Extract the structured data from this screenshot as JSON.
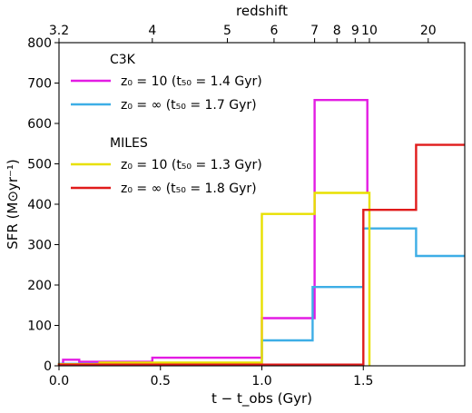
{
  "chart_data": {
    "type": "line",
    "xlabel": "t − t_obs (Gyr)",
    "ylabel": "SFR (M⊙yr⁻¹)",
    "top_xlabel": "redshift",
    "xlim": [
      0,
      2.0
    ],
    "ylim": [
      0,
      800
    ],
    "x_ticks": [
      0.0,
      0.5,
      1.0,
      1.5
    ],
    "x_tick_labels": [
      "0.0",
      "0.5",
      "1.0",
      "1.5"
    ],
    "y_ticks": [
      0,
      100,
      200,
      300,
      400,
      500,
      600,
      700,
      800
    ],
    "y_tick_labels": [
      "0",
      "100",
      "200",
      "300",
      "400",
      "500",
      "600",
      "700",
      "800"
    ],
    "top_ticks": [
      {
        "label": "3.2",
        "x": 0.0
      },
      {
        "label": "4",
        "x": 0.46
      },
      {
        "label": "5",
        "x": 0.83
      },
      {
        "label": "6",
        "x": 1.06
      },
      {
        "label": "7",
        "x": 1.26
      },
      {
        "label": "8",
        "x": 1.37
      },
      {
        "label": "9",
        "x": 1.46
      },
      {
        "label": "10",
        "x": 1.53
      },
      {
        "label": "20",
        "x": 1.82
      }
    ],
    "legend_groups": [
      {
        "title": "C3K",
        "entries": [
          0,
          1
        ]
      },
      {
        "title": "MILES",
        "entries": [
          2,
          3
        ]
      }
    ],
    "series": [
      {
        "name": "z₀ = 10 (t₅₀ = 1.4 Gyr)",
        "color": "#e31ce3",
        "x": [
          0.02,
          0.02,
          0.1,
          0.1,
          0.46,
          0.46,
          1.0,
          1.0,
          1.26,
          1.26,
          1.52,
          1.52
        ],
        "y": [
          0,
          15,
          15,
          10,
          10,
          20,
          20,
          118,
          118,
          658,
          658,
          430
        ]
      },
      {
        "name": "z₀ = ∞ (t₅₀ = 1.7 Gyr)",
        "color": "#3daee6",
        "x": [
          0.0,
          0.0,
          1.0,
          1.0,
          1.25,
          1.25,
          1.5,
          1.5,
          1.76,
          1.76,
          2.0
        ],
        "y": [
          0,
          5,
          5,
          63,
          63,
          195,
          195,
          340,
          340,
          272,
          272
        ]
      },
      {
        "name": "z₀ = 10 (t₅₀ = 1.3 Gyr)",
        "color": "#e8e000",
        "x": [
          0.0,
          0.0,
          0.2,
          0.2,
          1.0,
          1.0,
          1.26,
          1.26,
          1.53,
          1.53
        ],
        "y": [
          0,
          4,
          4,
          8,
          8,
          376,
          376,
          428,
          428,
          0
        ]
      },
      {
        "name": "z₀ = ∞ (t₅₀ = 1.8 Gyr)",
        "color": "#e01b1b",
        "x": [
          0.0,
          0.0,
          1.5,
          1.5,
          1.76,
          1.76,
          2.0
        ],
        "y": [
          0,
          3,
          3,
          386,
          386,
          547,
          547
        ]
      }
    ]
  }
}
